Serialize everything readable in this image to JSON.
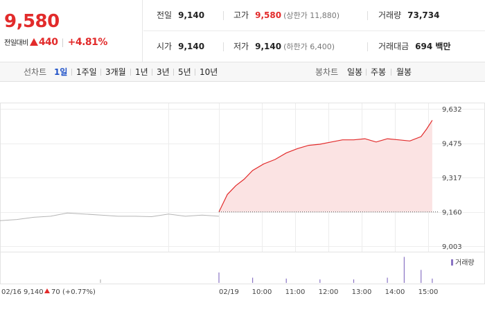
{
  "quote": {
    "price": "9,580",
    "change_label": "전일대비",
    "change_amount": "440",
    "change_percent": "+4.81%",
    "stats": {
      "prev_close": {
        "label": "전일",
        "value": "9,140"
      },
      "high": {
        "label": "고가",
        "value": "9,580",
        "sub": "(상한가 11,880)"
      },
      "volume": {
        "label": "거래량",
        "value": "73,734"
      },
      "open": {
        "label": "시가",
        "value": "9,140"
      },
      "low": {
        "label": "저가",
        "value": "9,140",
        "sub": "(하한가 6,400)"
      },
      "trade_value": {
        "label": "거래대금",
        "value": "694 백만"
      }
    }
  },
  "toolbar": {
    "line_label": "선차트",
    "periods": [
      "1일",
      "1주일",
      "3개월",
      "1년",
      "3년",
      "5년",
      "10년"
    ],
    "active_period": "1일",
    "candle_label": "봉차트",
    "candle_periods": [
      "일봉",
      "주봉",
      "월봉"
    ]
  },
  "colors": {
    "up": "#e22b2b",
    "active_tab": "#1f52c8",
    "prev_line": "#b5b5b5",
    "area_fill": "#fbe3e3",
    "volume_bar": "#8a74c4"
  },
  "chart_data": {
    "type": "line",
    "y_ticks": [
      "9,632",
      "9,475",
      "9,317",
      "9,160",
      "9,003"
    ],
    "ylim": [
      9003,
      9632
    ],
    "reference_price": 9160,
    "prev_day": {
      "date_label": "02/16",
      "close": "9,140",
      "change": "70",
      "change_pct": "(+0.77%)"
    },
    "today_date_label": "02/19",
    "time_ticks": [
      "10:00",
      "11:00",
      "12:00",
      "13:00",
      "14:00",
      "15:00"
    ],
    "volume_legend": "거래량",
    "series": [
      {
        "name": "02/16",
        "x": [
          "09:00",
          "09:30",
          "10:00",
          "10:30",
          "11:00",
          "11:30",
          "12:00",
          "12:30",
          "13:00",
          "13:30",
          "14:00",
          "14:30",
          "15:00",
          "15:30"
        ],
        "values": [
          9120,
          9125,
          9135,
          9140,
          9155,
          9150,
          9145,
          9140,
          9140,
          9138,
          9150,
          9140,
          9145,
          9140
        ]
      },
      {
        "name": "02/19",
        "x": [
          "09:00",
          "09:15",
          "09:30",
          "09:45",
          "10:00",
          "10:20",
          "10:40",
          "11:00",
          "11:20",
          "11:40",
          "12:00",
          "12:20",
          "12:40",
          "13:00",
          "13:20",
          "13:40",
          "14:00",
          "14:20",
          "14:40",
          "15:00",
          "15:10",
          "15:20"
        ],
        "values": [
          9160,
          9240,
          9280,
          9310,
          9350,
          9380,
          9400,
          9430,
          9450,
          9465,
          9470,
          9480,
          9490,
          9490,
          9495,
          9480,
          9495,
          9490,
          9485,
          9505,
          9540,
          9580
        ]
      }
    ],
    "volume": {
      "x": [
        "02/16",
        "02/19 09:00",
        "10:00",
        "11:00",
        "12:00",
        "13:00",
        "14:00",
        "14:30",
        "15:00",
        "15:20"
      ],
      "values": [
        4,
        12,
        6,
        5,
        4,
        4,
        6,
        30,
        15,
        5
      ]
    }
  }
}
